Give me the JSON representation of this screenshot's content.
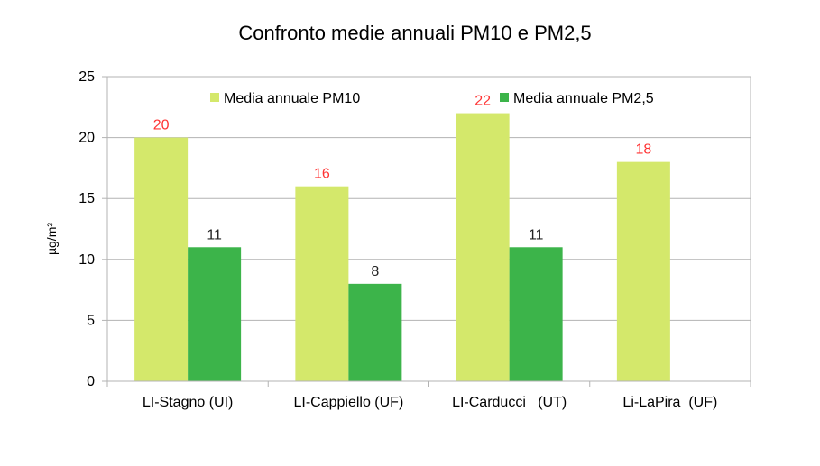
{
  "chart_data": {
    "type": "bar",
    "title": "Confronto medie annuali PM10 e PM2,5",
    "xlabel": "",
    "ylabel": "µg/m³",
    "ylim": [
      0,
      25
    ],
    "yticks": [
      0,
      5,
      10,
      15,
      20,
      25
    ],
    "grid": true,
    "categories": [
      "LI-Stagno (UI)",
      "LI-Cappiello (UF)",
      "LI-Carducci   (UT)",
      "Li-LaPira  (UF)"
    ],
    "series": [
      {
        "name": "Media annuale PM10",
        "color": "#d4e86b",
        "label_color": "#ff3333",
        "values": [
          20,
          16,
          22,
          18
        ],
        "labels": [
          "20",
          "16",
          "22",
          "18"
        ]
      },
      {
        "name": "Media annuale PM2,5",
        "color": "#3cb44a",
        "label_color": "#222222",
        "values": [
          11,
          8,
          11,
          null
        ],
        "labels": [
          "11",
          "8",
          "11",
          ""
        ]
      }
    ],
    "legend_position": "top-inside"
  }
}
